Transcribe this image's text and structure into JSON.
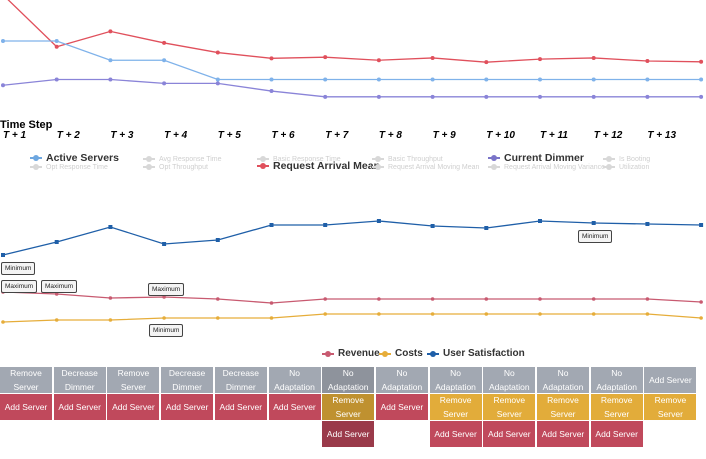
{
  "chart1": {
    "axis_title": "Time Step",
    "ticks": [
      "T + 1",
      "T + 2",
      "T + 3",
      "T + 4",
      "T + 5",
      "T + 6",
      "T + 7",
      "T + 8",
      "T + 9",
      "T + 10",
      "T + 11",
      "T + 12",
      "T + 13"
    ],
    "series": [
      {
        "name": "Request Arrival Mean",
        "color": "#e0505c",
        "values": [
          3.2,
          1.85,
          2.25,
          1.95,
          1.7,
          1.55,
          1.58,
          1.5,
          1.56,
          1.45,
          1.53,
          1.56,
          1.48,
          1.46
        ]
      },
      {
        "name": "Active Servers",
        "color": "#7fb2ea",
        "values": [
          2,
          2,
          1.5,
          1.5,
          1,
          1,
          1,
          1,
          1,
          1,
          1,
          1,
          1,
          1
        ]
      },
      {
        "name": "Current Dimmer",
        "color": "#8a84d8",
        "values": [
          0.85,
          1.0,
          1.0,
          0.9,
          0.9,
          0.7,
          0.55,
          0.55,
          0.55,
          0.55,
          0.55,
          0.55,
          0.55,
          0.55
        ]
      }
    ]
  },
  "legend1": {
    "active": [
      {
        "label": "Active Servers",
        "color": "#6ea7e0"
      },
      {
        "label": "Request Arrival Mean",
        "color": "#e0505c"
      },
      {
        "label": "Current Dimmer",
        "color": "#7a74c8"
      }
    ],
    "inactive": [
      "Opt Response Time",
      "Avg Response Time",
      "Opt Throughput",
      "Basic Response Time",
      "Basic Throughput",
      "Request Arrival Moving Mean",
      "Request Arrival Moving Variance",
      "Is Booting",
      "Utilization"
    ]
  },
  "chart2": {
    "series": [
      {
        "name": "User Satisfaction",
        "color": "#1f5fa8",
        "values": [
          255,
          242,
          227,
          244,
          240,
          225,
          225,
          221,
          226,
          228,
          221,
          223,
          224,
          225
        ]
      },
      {
        "name": "Revenue",
        "color": "#c85a70",
        "values": [
          292,
          294,
          298,
          297,
          299,
          303,
          299,
          299,
          299,
          299,
          299,
          299,
          299,
          302
        ]
      },
      {
        "name": "Costs",
        "color": "#e6ad3a",
        "values": [
          322,
          320,
          320,
          318,
          318,
          318,
          314,
          314,
          314,
          314,
          314,
          314,
          314,
          318
        ]
      }
    ],
    "tooltips": [
      "Minimum",
      "Maximum",
      "Maximum",
      "Maximum",
      "Minimum",
      "Minimum"
    ]
  },
  "legend2": [
    {
      "label": "Revenue",
      "color": "#c85a70"
    },
    {
      "label": "Costs",
      "color": "#e6ad3a"
    },
    {
      "label": "User Satisfaction",
      "color": "#1f5fa8"
    }
  ],
  "actions": {
    "row1": [
      {
        "label": "Remove Server",
        "color": "gray"
      },
      {
        "label": "Decrease Dimmer",
        "color": "gray"
      },
      {
        "label": "Remove Server",
        "color": "gray"
      },
      {
        "label": "Decrease Dimmer",
        "color": "gray"
      },
      {
        "label": "Decrease Dimmer",
        "color": "gray"
      },
      {
        "label": "No Adaptation",
        "color": "gray"
      },
      {
        "label": "No Adaptation",
        "color": "gray dark"
      },
      {
        "label": "No Adaptation",
        "color": "gray"
      },
      {
        "label": "No Adaptation",
        "color": "gray"
      },
      {
        "label": "No Adaptation",
        "color": "gray"
      },
      {
        "label": "No Adaptation",
        "color": "gray"
      },
      {
        "label": "No Adaptation",
        "color": "gray"
      },
      {
        "label": "Add Server",
        "color": "gray"
      }
    ],
    "row2": [
      {
        "label": "Add Server",
        "color": "red"
      },
      {
        "label": "Add Server",
        "color": "red"
      },
      {
        "label": "Add Server",
        "color": "red"
      },
      {
        "label": "Add Server",
        "color": "red"
      },
      {
        "label": "Add Server",
        "color": "red"
      },
      {
        "label": "Add Server",
        "color": "red"
      },
      {
        "label": "Remove Server",
        "color": "yellow dark"
      },
      {
        "label": "Add Server",
        "color": "red"
      },
      {
        "label": "Remove Server",
        "color": "yellow"
      },
      {
        "label": "Remove Server",
        "color": "yellow"
      },
      {
        "label": "Remove Server",
        "color": "yellow"
      },
      {
        "label": "Remove Server",
        "color": "yellow"
      },
      {
        "label": "Remove Server",
        "color": "yellow"
      }
    ],
    "row3": [
      null,
      null,
      null,
      null,
      null,
      null,
      {
        "label": "Add Server",
        "color": "red dark"
      },
      null,
      {
        "label": "Add Server",
        "color": "red"
      },
      {
        "label": "Add Server",
        "color": "red"
      },
      {
        "label": "Add Server",
        "color": "red"
      },
      {
        "label": "Add Server",
        "color": "red"
      },
      null
    ]
  }
}
